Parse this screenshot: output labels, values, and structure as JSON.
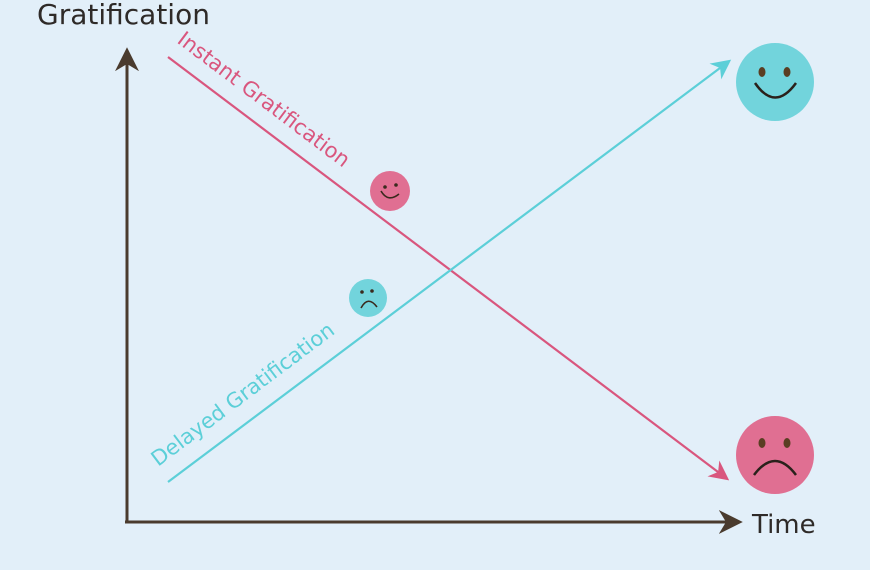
{
  "axes": {
    "y_label": "Gratification",
    "x_label": "Time"
  },
  "lines": {
    "instant": {
      "label": "Instant Gratification",
      "trend": "decreasing",
      "start_mood": "happy",
      "end_mood": "sad"
    },
    "delayed": {
      "label": "Delayed Gratification",
      "trend": "increasing",
      "start_mood": "sad",
      "end_mood": "happy"
    }
  },
  "colors": {
    "background": "#e2eff9",
    "axis": "#4a3b2e",
    "instant": "#d9567e",
    "delayed": "#5ccfd8",
    "instant_face": "#e06f92",
    "delayed_face": "#72d4dc",
    "face_feature": "#3a2a1e"
  },
  "icons": [
    "happy-face-icon",
    "sad-face-icon"
  ]
}
